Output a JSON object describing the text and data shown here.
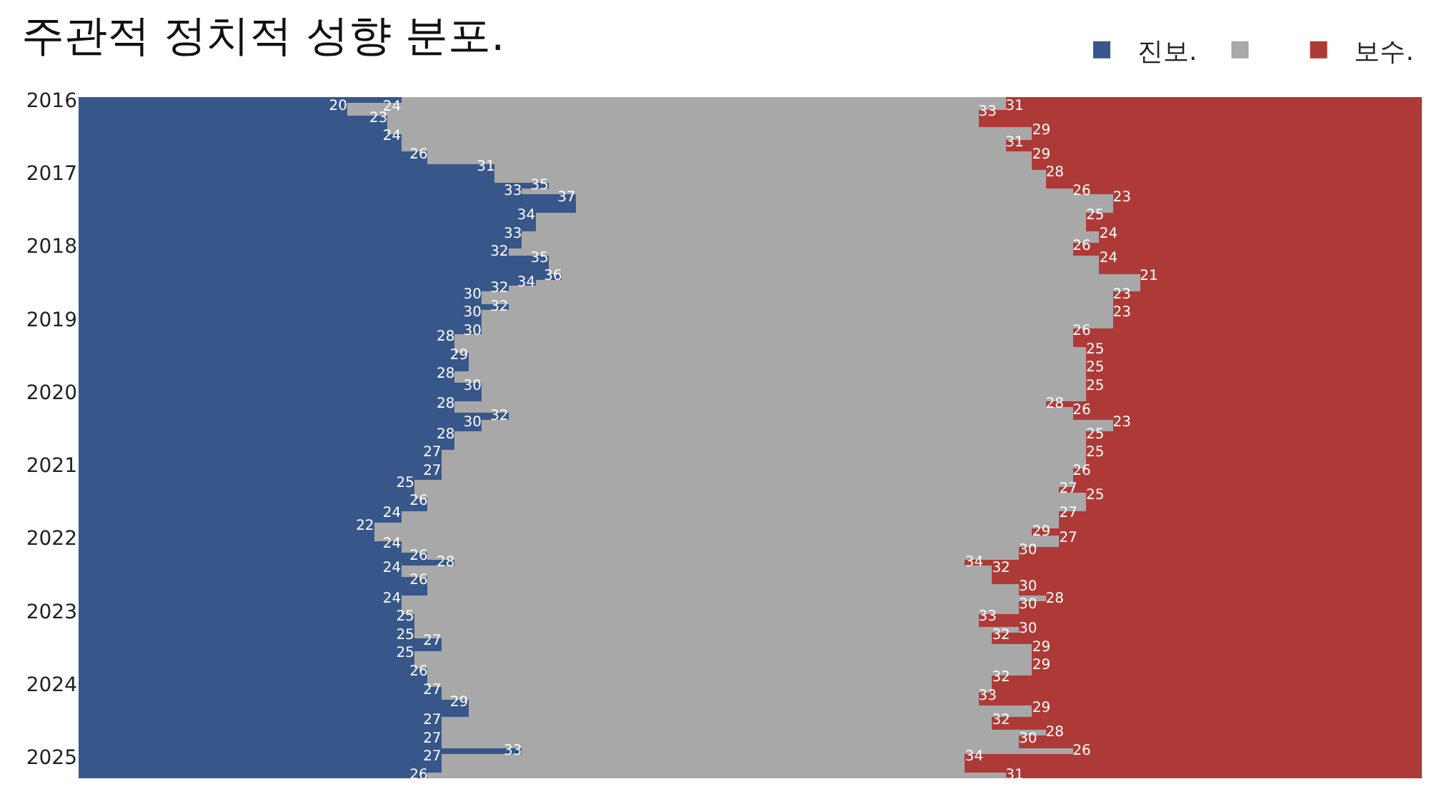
{
  "chart_data": {
    "type": "bar",
    "orientation": "horizontal",
    "stacked": true,
    "title": "주관적 정치적 성향 분포.",
    "categories": [
      "2016",
      null,
      null,
      null,
      null,
      null,
      null,
      null,
      null,
      null,
      null,
      null,
      "2017",
      null,
      null,
      null,
      null,
      null,
      null,
      null,
      null,
      null,
      null,
      null,
      "2018",
      null,
      null,
      null,
      null,
      null,
      null,
      null,
      null,
      null,
      null,
      null,
      "2019",
      null,
      null,
      null,
      null,
      null,
      null,
      null,
      null,
      null,
      null,
      null,
      "2020",
      null,
      null,
      null,
      null,
      null,
      null,
      null,
      null,
      null,
      null,
      null,
      "2021",
      null,
      null,
      null,
      null,
      null,
      null,
      null,
      null,
      null,
      null,
      null,
      "2022",
      null,
      null,
      null,
      null,
      null,
      null,
      null,
      null,
      null,
      null,
      null,
      "2023",
      null,
      null,
      null,
      null,
      null,
      null,
      null,
      null,
      null,
      null,
      null,
      "2024",
      null,
      null,
      null,
      null,
      null,
      null,
      null,
      null,
      null,
      null,
      null,
      "2025",
      null,
      null,
      null
    ],
    "xlim": [
      0,
      100
    ],
    "tick_labels": "y",
    "legend": "top right",
    "series": [
      {
        "name": "진보.",
        "color": "#37568a",
        "values": [
          24,
          20,
          20,
          23,
          23,
          23,
          24,
          24,
          24,
          26,
          26,
          31,
          31,
          31,
          35,
          33,
          37,
          37,
          37,
          34,
          34,
          34,
          33,
          33,
          33,
          32,
          35,
          35,
          35,
          36,
          34,
          32,
          30,
          30,
          32,
          30,
          30,
          30,
          30,
          28,
          28,
          28,
          29,
          29,
          29,
          28,
          28,
          30,
          30,
          30,
          28,
          28,
          32,
          30,
          30,
          28,
          28,
          28,
          27,
          27,
          27,
          27,
          27,
          25,
          25,
          25,
          26,
          26,
          24,
          24,
          22,
          22,
          22,
          24,
          24,
          26,
          28,
          24,
          24,
          26,
          26,
          26,
          24,
          24,
          24,
          25,
          25,
          25,
          25,
          27,
          27,
          25,
          25,
          25,
          26,
          26,
          26,
          27,
          27,
          29,
          29,
          29,
          27,
          27,
          27,
          27,
          27,
          33,
          27,
          27,
          27,
          26
        ],
        "value_labels": [
          "24",
          "20",
          null,
          "23",
          null,
          null,
          "24",
          null,
          null,
          "26",
          null,
          "31",
          null,
          null,
          "35",
          "33",
          "37",
          null,
          null,
          "34",
          null,
          null,
          "33",
          null,
          null,
          "32",
          "35",
          null,
          null,
          "36",
          "34",
          "32",
          "30",
          null,
          "32",
          "30",
          null,
          null,
          "30",
          "28",
          null,
          null,
          "29",
          null,
          null,
          "28",
          null,
          "30",
          null,
          null,
          "28",
          null,
          "32",
          "30",
          null,
          "28",
          null,
          null,
          "27",
          null,
          null,
          "27",
          null,
          "25",
          null,
          null,
          "26",
          null,
          "24",
          null,
          "22",
          null,
          null,
          "24",
          null,
          "26",
          "28",
          "24",
          null,
          "26",
          null,
          null,
          "24",
          null,
          null,
          "25",
          null,
          null,
          "25",
          "27",
          null,
          "25",
          null,
          null,
          "26",
          null,
          null,
          "27",
          null,
          "29",
          null,
          null,
          "27",
          null,
          null,
          "27",
          null,
          "33",
          "27",
          null,
          null,
          "26"
        ]
      },
      {
        "color": "#a8a8a8",
        "values": [
          45,
          49,
          47,
          44,
          44,
          48,
          47,
          45,
          45,
          45,
          45,
          40,
          41,
          41,
          37,
          41,
          40,
          40,
          40,
          41,
          41,
          41,
          43,
          43,
          41,
          42,
          41,
          41,
          41,
          43,
          45,
          47,
          47,
          47,
          45,
          47,
          47,
          47,
          44,
          46,
          46,
          47,
          46,
          46,
          46,
          47,
          47,
          45,
          45,
          45,
          44,
          46,
          42,
          47,
          47,
          47,
          47,
          47,
          48,
          48,
          48,
          47,
          47,
          49,
          48,
          50,
          49,
          49,
          49,
          49,
          51,
          49,
          51,
          49,
          46,
          44,
          38,
          44,
          44,
          42,
          44,
          44,
          48,
          46,
          46,
          42,
          42,
          45,
          43,
          41,
          44,
          46,
          46,
          46,
          45,
          42,
          42,
          41,
          40,
          38,
          42,
          42,
          41,
          41,
          45,
          43,
          43,
          41,
          39,
          39,
          39,
          43
        ]
      },
      {
        "name": "보수.",
        "color": "#ae3a37",
        "values": [
          31,
          31,
          33,
          33,
          33,
          29,
          29,
          31,
          31,
          29,
          29,
          29,
          28,
          28,
          28,
          26,
          23,
          23,
          23,
          25,
          25,
          25,
          24,
          24,
          26,
          26,
          24,
          24,
          24,
          21,
          21,
          21,
          23,
          23,
          23,
          23,
          23,
          23,
          26,
          26,
          26,
          25,
          25,
          25,
          25,
          25,
          25,
          25,
          25,
          25,
          28,
          26,
          26,
          23,
          23,
          25,
          25,
          25,
          25,
          25,
          25,
          26,
          26,
          26,
          27,
          25,
          25,
          25,
          27,
          27,
          27,
          29,
          27,
          27,
          30,
          30,
          34,
          32,
          32,
          32,
          30,
          30,
          28,
          30,
          30,
          33,
          33,
          30,
          32,
          32,
          29,
          29,
          29,
          29,
          29,
          32,
          32,
          32,
          33,
          33,
          29,
          29,
          32,
          32,
          28,
          30,
          30,
          26,
          34,
          34,
          34,
          31
        ],
        "value_labels": [
          null,
          "31",
          "33",
          null,
          null,
          "29",
          null,
          "31",
          null,
          "29",
          null,
          null,
          "28",
          null,
          null,
          "26",
          "23",
          null,
          null,
          "25",
          null,
          null,
          "24",
          null,
          "26",
          null,
          "24",
          null,
          null,
          "21",
          null,
          null,
          "23",
          null,
          null,
          "23",
          null,
          null,
          "26",
          null,
          null,
          "25",
          null,
          null,
          "25",
          null,
          null,
          "25",
          null,
          null,
          "28",
          "26",
          null,
          "23",
          null,
          "25",
          null,
          null,
          "25",
          null,
          null,
          "26",
          null,
          null,
          "27",
          "25",
          null,
          null,
          "27",
          null,
          null,
          "29",
          "27",
          null,
          "30",
          null,
          "34",
          "32",
          null,
          null,
          "30",
          null,
          "28",
          "30",
          null,
          "33",
          null,
          "30",
          "32",
          null,
          "29",
          null,
          null,
          "29",
          null,
          "32",
          null,
          null,
          "33",
          null,
          "29",
          null,
          "32",
          null,
          "28",
          "30",
          null,
          "26",
          "34",
          null,
          null,
          "31"
        ]
      }
    ]
  }
}
